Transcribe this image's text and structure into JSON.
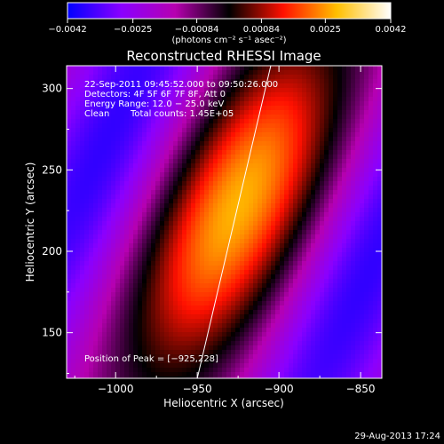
{
  "chart_data": {
    "type": "heatmap",
    "title": "Reconstructed RHESSI Image",
    "xlabel": "Heliocentric X (arcsec)",
    "ylabel": "Heliocentric Y (arcsec)",
    "xlim": [
      -1030,
      -837
    ],
    "ylim": [
      122,
      314
    ],
    "x_ticks": [
      -1000,
      -950,
      -900,
      -850
    ],
    "x_tick_labels": [
      "−1000",
      "−950",
      "−900",
      "−850"
    ],
    "y_ticks": [
      150,
      200,
      250,
      300
    ],
    "y_tick_labels": [
      "150",
      "200",
      "250",
      "300"
    ],
    "colorbar": {
      "range": [
        -0.0042,
        0.0042
      ],
      "ticks": [
        -0.0042,
        -0.0025,
        -0.00084,
        0.00084,
        0.0025,
        0.0042
      ],
      "tick_labels": [
        "−0.0042",
        "−0.0025",
        "−0.00084",
        "0.00084",
        "0.0025",
        "0.0042"
      ],
      "unit_label": "(photons cm⁻² s⁻¹ asec⁻²)",
      "colormap": [
        "#0000ff",
        "#8a00ff",
        "#b600b0",
        "#000000",
        "#ff1000",
        "#ffbf00",
        "#ffffff"
      ]
    },
    "peak": {
      "x": -925,
      "y": 228
    },
    "blob_angle_deg": 25,
    "limb_line": [
      {
        "x": -950,
        "y": 122
      },
      {
        "x": -905,
        "y": 314
      }
    ],
    "annotations": [
      "22-Sep-2011 09:45:52.000 to 09:50:26.000",
      "Detectors: 4F 5F 6F 7F 8F, Att 0",
      "Energy Range: 12.0 − 25.0 keV",
      "Clean",
      "Total counts: 1.45E+05",
      "Position of Peak = [−925,228]"
    ]
  },
  "footer": {
    "timestamp": "29-Aug-2013 17:24"
  }
}
